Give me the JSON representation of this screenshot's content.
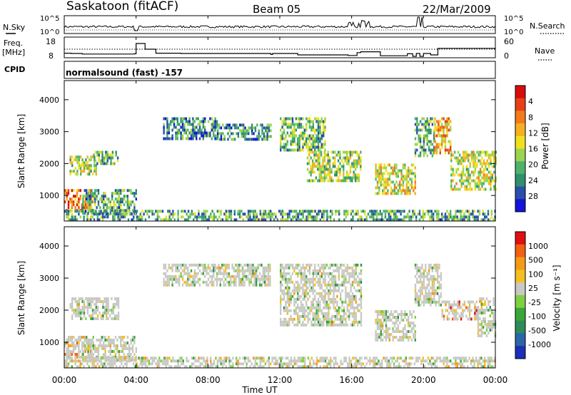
{
  "header": {
    "station": "Saskatoon (fitACF)",
    "beam": "Beam 05",
    "date": "22/Mar/2009",
    "cpid_label": "CPID",
    "cpid_value": "normalsound (fast) -157"
  },
  "strip_panels": {
    "nsky": {
      "left_label": "N.Sky",
      "right_label": "N.Search",
      "yticks_left": [
        "10^5",
        "10^0"
      ],
      "yticks_right": [
        "10^5",
        "10^0"
      ]
    },
    "freq": {
      "left_label_1": "Freq.",
      "left_label_2": "[MHz]",
      "right_label": "Nave",
      "yticks_left": [
        "18",
        "8"
      ],
      "yticks_right": [
        "60",
        "0"
      ],
      "freq_steps": [
        {
          "t": 0.0,
          "v": 11.2
        },
        {
          "t": 0.4,
          "v": 11.0
        },
        {
          "t": 1.0,
          "v": 10.6
        },
        {
          "t": 3.9,
          "v": 10.8
        },
        {
          "t": 4.0,
          "v": 18.0
        },
        {
          "t": 4.5,
          "v": 14.0
        },
        {
          "t": 5.1,
          "v": 11.2
        },
        {
          "t": 6.5,
          "v": 11.0
        },
        {
          "t": 11.5,
          "v": 10.3
        },
        {
          "t": 11.6,
          "v": 11.0
        },
        {
          "t": 13.0,
          "v": 10.0
        },
        {
          "t": 15.8,
          "v": 9.6
        },
        {
          "t": 16.3,
          "v": 11.6
        },
        {
          "t": 16.5,
          "v": 12.2
        },
        {
          "t": 17.6,
          "v": 9.4
        },
        {
          "t": 19.1,
          "v": 10.8
        },
        {
          "t": 19.4,
          "v": 9.0
        },
        {
          "t": 19.6,
          "v": 11.0
        },
        {
          "t": 19.8,
          "v": 9.0
        },
        {
          "t": 20.0,
          "v": 11.0
        },
        {
          "t": 20.4,
          "v": 10.0
        },
        {
          "t": 20.8,
          "v": 14.6
        },
        {
          "t": 24.0,
          "v": 14.6
        }
      ]
    }
  },
  "chart_data": [
    {
      "type": "heatmap",
      "name": "power",
      "ylabel": "Slant Range [km]",
      "yticks": [
        1000,
        2000,
        3000,
        4000
      ],
      "ylim": [
        200,
        4600
      ],
      "colorbar_label": "Power [dB]",
      "colorbar_ticks": [
        "4",
        "8",
        "12",
        "16",
        "20",
        "24",
        "28"
      ],
      "colorbar_colors": [
        "#1414d8",
        "#2a4fa8",
        "#2f8f6e",
        "#4fb26a",
        "#9bd44f",
        "#f0e020",
        "#f5b021",
        "#f37b1b",
        "#e84015",
        "#d80c0c"
      ],
      "regions": [
        {
          "t0": 0.0,
          "t1": 1.6,
          "r0": 550,
          "r1": 1200,
          "level": 0.8
        },
        {
          "t0": 0.3,
          "t1": 1.8,
          "r0": 1700,
          "r1": 2250,
          "level": 0.45
        },
        {
          "t0": 1.6,
          "t1": 3.0,
          "r0": 2000,
          "r1": 2400,
          "level": 0.35
        },
        {
          "t0": 1.0,
          "t1": 4.0,
          "r0": 400,
          "r1": 1200,
          "level": 0.3
        },
        {
          "t0": 0.0,
          "t1": 24.0,
          "r0": 200,
          "r1": 550,
          "level": 0.3
        },
        {
          "t0": 5.5,
          "t1": 8.5,
          "r0": 2800,
          "r1": 3450,
          "level": 0.25
        },
        {
          "t0": 8.5,
          "t1": 11.5,
          "r0": 2750,
          "r1": 3250,
          "level": 0.25
        },
        {
          "t0": 12.0,
          "t1": 14.5,
          "r0": 2400,
          "r1": 3450,
          "level": 0.35
        },
        {
          "t0": 13.5,
          "t1": 16.5,
          "r0": 1500,
          "r1": 2400,
          "level": 0.45
        },
        {
          "t0": 17.3,
          "t1": 19.5,
          "r0": 1100,
          "r1": 2000,
          "level": 0.55
        },
        {
          "t0": 19.5,
          "t1": 20.6,
          "r0": 2200,
          "r1": 3450,
          "level": 0.3
        },
        {
          "t0": 20.6,
          "t1": 21.5,
          "r0": 2300,
          "r1": 3450,
          "level": 0.7
        },
        {
          "t0": 21.5,
          "t1": 24.0,
          "r0": 1200,
          "r1": 2400,
          "level": 0.5
        }
      ]
    },
    {
      "type": "heatmap",
      "name": "velocity",
      "ylabel": "Slant Range [km]",
      "yticks": [
        1000,
        2000,
        3000,
        4000
      ],
      "ylim": [
        200,
        4600
      ],
      "colorbar_label": "Velocity [m s⁻¹]",
      "colorbar_ticks": [
        "1000",
        "500",
        "100",
        "25",
        "-25",
        "-100",
        "-500",
        "-1000"
      ],
      "colorbar_colors": [
        "#1c2fb8",
        "#2a66a8",
        "#2f8b5a",
        "#3aa63a",
        "#7fd040",
        "#c9c9c3",
        "#f2c020",
        "#f59a18",
        "#f26014",
        "#e01010"
      ],
      "regions": [
        {
          "t0": 0.0,
          "t1": 1.6,
          "r0": 550,
          "r1": 1200,
          "level": 0.7
        },
        {
          "t0": 0.3,
          "t1": 3.0,
          "r0": 1700,
          "r1": 2400,
          "level": 0.5
        },
        {
          "t0": 1.0,
          "t1": 4.0,
          "r0": 400,
          "r1": 1200,
          "level": 0.5
        },
        {
          "t0": 0.0,
          "t1": 24.0,
          "r0": 200,
          "r1": 550,
          "level": 0.55
        },
        {
          "t0": 5.5,
          "t1": 11.5,
          "r0": 2750,
          "r1": 3450,
          "level": 0.5
        },
        {
          "t0": 12.0,
          "t1": 16.5,
          "r0": 1500,
          "r1": 3450,
          "level": 0.5
        },
        {
          "t0": 17.3,
          "t1": 19.5,
          "r0": 1100,
          "r1": 2000,
          "level": 0.5
        },
        {
          "t0": 19.5,
          "t1": 21.0,
          "r0": 2200,
          "r1": 3450,
          "level": 0.5
        },
        {
          "t0": 21.0,
          "t1": 23.0,
          "r0": 1700,
          "r1": 2300,
          "level": 0.8
        },
        {
          "t0": 23.0,
          "t1": 24.0,
          "r0": 1200,
          "r1": 2400,
          "level": 0.5
        }
      ]
    }
  ],
  "xaxis": {
    "label": "Time UT",
    "ticks": [
      "00:00",
      "04:00",
      "08:00",
      "12:00",
      "16:00",
      "20:00",
      "00:00"
    ],
    "range": [
      0,
      24
    ]
  }
}
